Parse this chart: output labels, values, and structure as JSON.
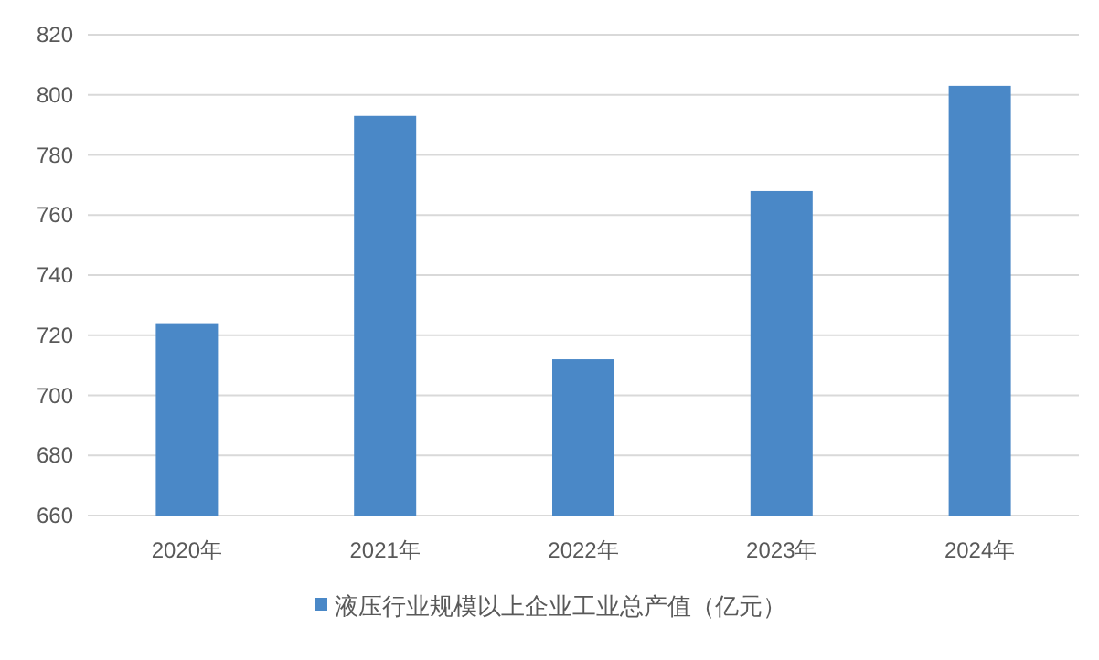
{
  "chart_data": {
    "type": "bar",
    "categories": [
      "2020年",
      "2021年",
      "2022年",
      "2023年",
      "2024年"
    ],
    "series": [
      {
        "name": "液压行业规模以上企业工业总产值（亿元）",
        "color": "#4a88c7",
        "values": [
          724,
          793,
          712,
          768,
          803
        ]
      }
    ],
    "ylim": [
      660,
      820
    ],
    "yticks": [
      660,
      680,
      700,
      720,
      740,
      760,
      780,
      800,
      820
    ],
    "grid": "y",
    "legend": "bottom"
  }
}
